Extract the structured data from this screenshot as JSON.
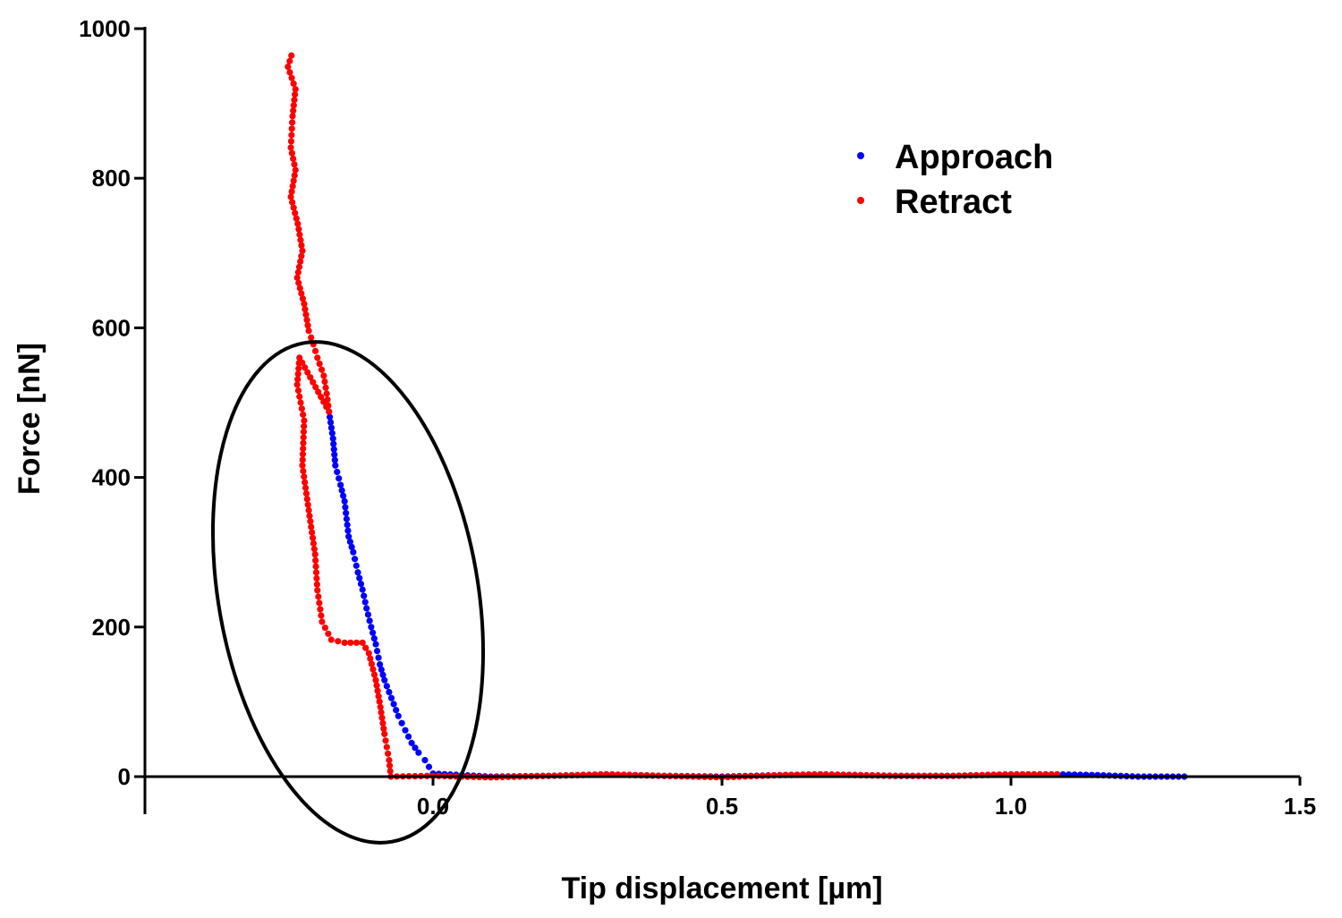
{
  "chart_data": {
    "type": "scatter",
    "title": "",
    "xlabel": "Tip displacement [µm]",
    "ylabel": "Force [nN]",
    "xlim": [
      -0.5,
      1.5
    ],
    "ylim": [
      -50,
      1000
    ],
    "x_ticks": [
      "0.0",
      "0.5",
      "1.0",
      "1.5"
    ],
    "x_tick_values": [
      0,
      0.5,
      1.0,
      1.5
    ],
    "y_ticks": [
      "0",
      "200",
      "400",
      "600",
      "800",
      "1000"
    ],
    "y_tick_values": [
      0,
      200,
      400,
      600,
      800,
      1000
    ],
    "grid": false,
    "legend_position": "top-right",
    "annotation": "ellipse around contact region",
    "series": [
      {
        "name": "Approach",
        "color": "#0000ff",
        "points": [
          [
            -0.18,
            488
          ],
          [
            -0.173,
            452
          ],
          [
            -0.169,
            416
          ],
          [
            -0.16,
            390
          ],
          [
            -0.153,
            368
          ],
          [
            -0.146,
            321
          ],
          [
            -0.138,
            300
          ],
          [
            -0.13,
            273
          ],
          [
            -0.122,
            250
          ],
          [
            -0.115,
            225
          ],
          [
            -0.107,
            200
          ],
          [
            -0.099,
            177
          ],
          [
            -0.092,
            150
          ],
          [
            -0.084,
            129
          ],
          [
            -0.072,
            105
          ],
          [
            -0.06,
            81
          ],
          [
            -0.048,
            62
          ],
          [
            -0.037,
            45
          ],
          [
            -0.025,
            32
          ],
          [
            -0.014,
            22
          ],
          [
            0,
            4
          ],
          [
            0.1,
            0
          ],
          [
            0.2,
            1
          ],
          [
            0.3,
            3
          ],
          [
            0.4,
            1
          ],
          [
            0.5,
            0
          ],
          [
            0.6,
            2
          ],
          [
            0.67,
            3
          ],
          [
            0.8,
            1
          ],
          [
            0.9,
            1
          ],
          [
            1.0,
            3
          ],
          [
            1.08,
            3
          ],
          [
            1.15,
            2
          ],
          [
            1.22,
            0
          ],
          [
            1.3,
            0
          ]
        ]
      },
      {
        "name": "Retract",
        "color": "#ff0000",
        "points": [
          [
            -0.245,
            964
          ],
          [
            -0.251,
            949
          ],
          [
            -0.238,
            919
          ],
          [
            -0.243,
            883
          ],
          [
            -0.246,
            841
          ],
          [
            -0.238,
            811
          ],
          [
            -0.246,
            775
          ],
          [
            -0.234,
            739
          ],
          [
            -0.226,
            703
          ],
          [
            -0.235,
            667
          ],
          [
            -0.223,
            632
          ],
          [
            -0.215,
            596
          ],
          [
            -0.207,
            578
          ],
          [
            -0.2,
            560
          ],
          [
            -0.189,
            536
          ],
          [
            -0.184,
            512
          ],
          [
            -0.18,
            488
          ],
          [
            -0.231,
            560
          ],
          [
            -0.235,
            524
          ],
          [
            -0.223,
            476
          ],
          [
            -0.226,
            416
          ],
          [
            -0.215,
            356
          ],
          [
            -0.204,
            297
          ],
          [
            -0.2,
            249
          ],
          [
            -0.192,
            207
          ],
          [
            -0.176,
            183
          ],
          [
            -0.153,
            179
          ],
          [
            -0.122,
            179
          ],
          [
            -0.111,
            165
          ],
          [
            -0.099,
            129
          ],
          [
            -0.091,
            93
          ],
          [
            -0.084,
            57
          ],
          [
            -0.076,
            22
          ],
          [
            -0.073,
            0
          ],
          [
            0.0,
            1
          ],
          [
            0.1,
            -1
          ],
          [
            0.2,
            1
          ],
          [
            0.3,
            3
          ],
          [
            0.4,
            1
          ],
          [
            0.5,
            -1
          ],
          [
            0.6,
            2
          ],
          [
            0.67,
            3
          ],
          [
            0.8,
            1
          ],
          [
            0.9,
            1
          ],
          [
            1.0,
            3
          ],
          [
            1.08,
            3
          ]
        ]
      }
    ]
  }
}
